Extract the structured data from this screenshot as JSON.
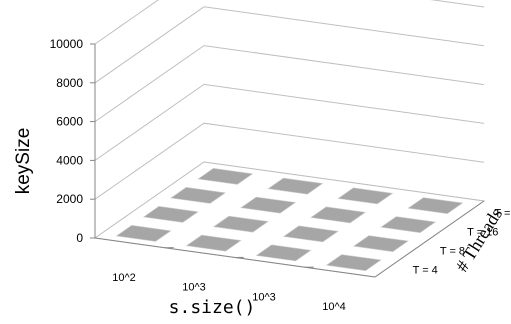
{
  "chart_data": {
    "type": "bar",
    "subtype": "3d-column",
    "title": "",
    "ylabel": "keySize",
    "xlabel": "s.size()",
    "zlabel": "# Threads",
    "ylim": [
      0,
      10000
    ],
    "yticks": [
      0,
      2000,
      4000,
      6000,
      8000,
      10000
    ],
    "categories": [
      "10^2",
      "10^3",
      "10^3",
      "10^4"
    ],
    "series": [
      {
        "label": "T = 4",
        "values": [
          0,
          0,
          0,
          0
        ]
      },
      {
        "label": "T = 8",
        "values": [
          0,
          0,
          0,
          0
        ]
      },
      {
        "label": "T = 16",
        "values": [
          0,
          0,
          0,
          0
        ]
      },
      {
        "label": "T = 32",
        "values": [
          0,
          0,
          0,
          0
        ]
      }
    ],
    "colors": {
      "bar_top": "#a6a6a6",
      "bar_face": "#cfcfcf",
      "grid": "#bfbfbf",
      "axis": "#868686"
    },
    "grid": true
  }
}
